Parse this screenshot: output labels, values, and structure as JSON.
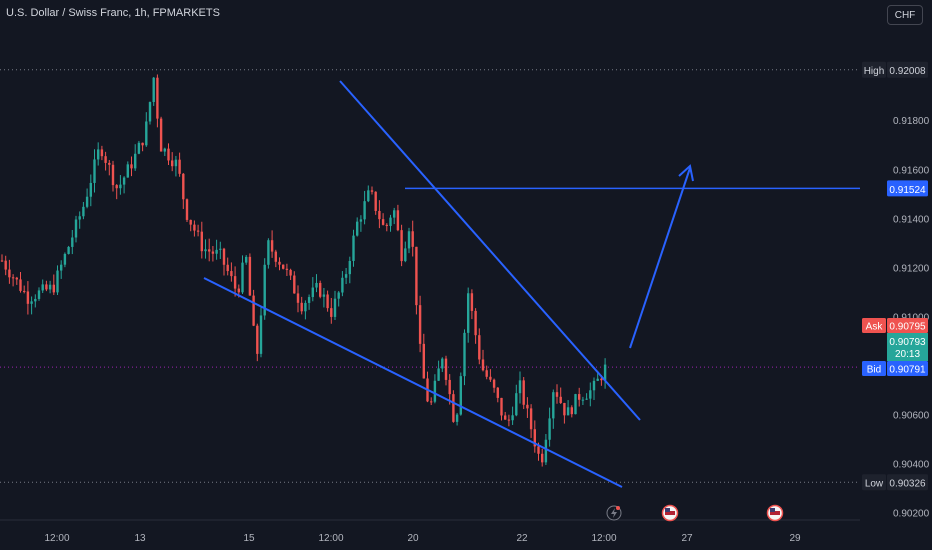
{
  "header": {
    "title": "U.S. Dollar / Swiss Franc, 1h, FPMARKETS",
    "currency": "CHF"
  },
  "price_labels": {
    "high_label": "High",
    "high_value": "0.92008",
    "level_value": "0.91524",
    "ask_label": "Ask",
    "ask_value": "0.90795",
    "current_value": "0.90793",
    "countdown": "20:13",
    "bid_label": "Bid",
    "bid_value": "0.90791",
    "low_label": "Low",
    "low_value": "0.90326"
  },
  "colors": {
    "background": "#131722",
    "up": "#26a69a",
    "down": "#ef5350",
    "drawing": "#2962ff",
    "text": "#b2b5be"
  },
  "chart_data": {
    "type": "candlestick",
    "title": "U.S. Dollar / Swiss Franc, 1h, FPMARKETS",
    "ylim": [
      0.9018,
      0.9217
    ],
    "y_ticks": [
      "0.91800",
      "0.91600",
      "0.91400",
      "0.91200",
      "0.91000",
      "0.90600",
      "0.90400",
      "0.90200"
    ],
    "x_ticks": [
      "12:00",
      "13",
      "15",
      "12:00",
      "20",
      "22",
      "12:00",
      "27",
      "29"
    ],
    "price_path": [
      [
        0.9123,
        0
      ],
      [
        0.9108,
        0.06
      ],
      [
        0.9112,
        0.12
      ],
      [
        0.9145,
        0.19
      ],
      [
        0.917,
        0.23
      ],
      [
        0.9152,
        0.27
      ],
      [
        0.9165,
        0.31
      ],
      [
        0.9175,
        0.335
      ],
      [
        0.9198,
        0.355
      ],
      [
        0.917,
        0.37
      ],
      [
        0.9162,
        0.41
      ],
      [
        0.9143,
        0.43
      ],
      [
        0.9128,
        0.47
      ],
      [
        0.9125,
        0.51
      ],
      [
        0.911,
        0.55
      ],
      [
        0.9125,
        0.57
      ],
      [
        0.9082,
        0.595
      ],
      [
        0.913,
        0.62
      ],
      [
        0.912,
        0.66
      ],
      [
        0.9105,
        0.7
      ],
      [
        0.9112,
        0.74
      ],
      [
        0.9102,
        0.77
      ],
      [
        0.9115,
        0.8
      ],
      [
        0.9138,
        0.83
      ],
      [
        0.9151,
        0.86
      ],
      [
        0.9135,
        0.895
      ],
      [
        0.9145,
        0.915
      ],
      [
        0.9125,
        0.935
      ],
      [
        0.914,
        0.955
      ],
      [
        0.908,
        0.98
      ],
      [
        0.9062,
        1.0
      ],
      [
        0.9085,
        1.03
      ],
      [
        0.9055,
        1.06
      ],
      [
        0.911,
        1.09
      ],
      [
        0.908,
        1.12
      ],
      [
        0.907,
        1.15
      ],
      [
        0.9055,
        1.18
      ],
      [
        0.9072,
        1.21
      ],
      [
        0.9056,
        1.235
      ],
      [
        0.904,
        1.26
      ],
      [
        0.9072,
        1.29
      ],
      [
        0.906,
        1.32
      ],
      [
        0.9068,
        1.35
      ],
      [
        0.907,
        1.38
      ],
      [
        0.9079,
        1.41
      ]
    ],
    "key_levels": {
      "high": 0.92008,
      "resistance": 0.91524,
      "ask": 0.90795,
      "bid": 0.90791,
      "low": 0.90326
    },
    "drawings": [
      {
        "type": "trendline",
        "name": "upper-wedge",
        "from": [
          0.0,
          0.9188
        ],
        "to": [
          1.0,
          0.9055
        ]
      },
      {
        "type": "trendline",
        "name": "lower-wedge",
        "from": [
          0.0,
          0.9105
        ],
        "to": [
          1.0,
          0.902
        ]
      },
      {
        "type": "horizontal",
        "name": "target-level",
        "y": 0.91524
      },
      {
        "type": "arrow",
        "name": "projection",
        "from_y": 0.908,
        "to_y": 0.91524
      }
    ]
  }
}
